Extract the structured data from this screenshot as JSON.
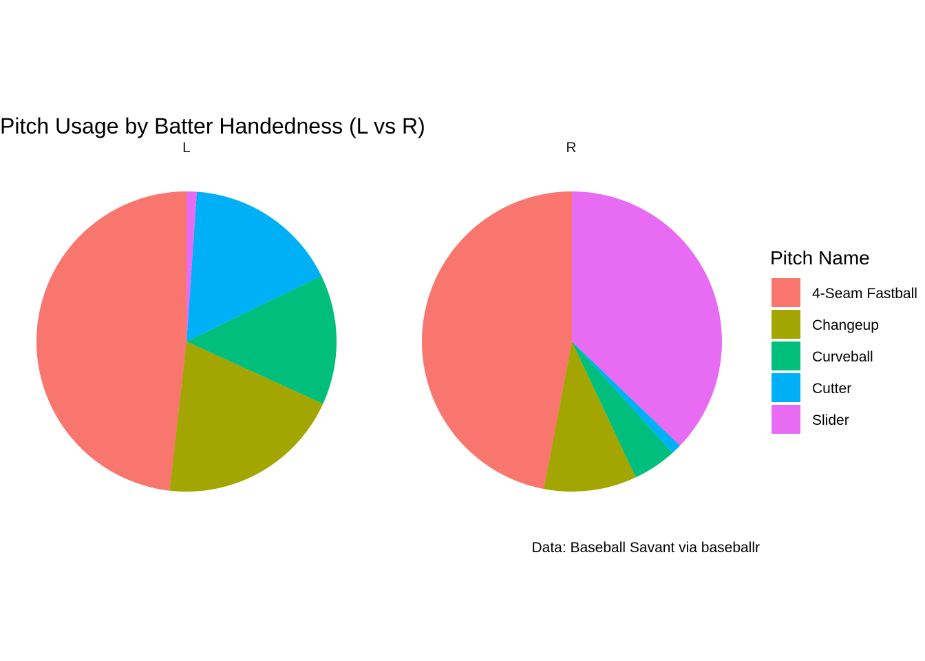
{
  "chart_data": {
    "type": "pie",
    "title": "Pitch Usage by Batter Handedness (L vs R)",
    "caption": "Data: Baseball Savant via baseballr",
    "legend": {
      "title": "Pitch Name",
      "placement": "right",
      "entries": [
        {
          "name": "4-Seam Fastball",
          "color": "#F8766D"
        },
        {
          "name": "Changeup",
          "color": "#A3A500"
        },
        {
          "name": "Curveball",
          "color": "#00BF7D"
        },
        {
          "name": "Cutter",
          "color": "#00B0F6"
        },
        {
          "name": "Slider",
          "color": "#E76BF3"
        }
      ]
    },
    "direction": "counter-clockwise from top",
    "facets": [
      {
        "label": "L",
        "slices": [
          {
            "name": "4-Seam Fastball",
            "value": 48.2
          },
          {
            "name": "Changeup",
            "value": 20.0
          },
          {
            "name": "Curveball",
            "value": 14.0
          },
          {
            "name": "Cutter",
            "value": 16.7
          },
          {
            "name": "Slider",
            "value": 1.1
          }
        ]
      },
      {
        "label": "R",
        "slices": [
          {
            "name": "4-Seam Fastball",
            "value": 47.0
          },
          {
            "name": "Changeup",
            "value": 10.0
          },
          {
            "name": "Curveball",
            "value": 4.7
          },
          {
            "name": "Cutter",
            "value": 1.1
          },
          {
            "name": "Slider",
            "value": 37.2
          }
        ]
      }
    ]
  }
}
